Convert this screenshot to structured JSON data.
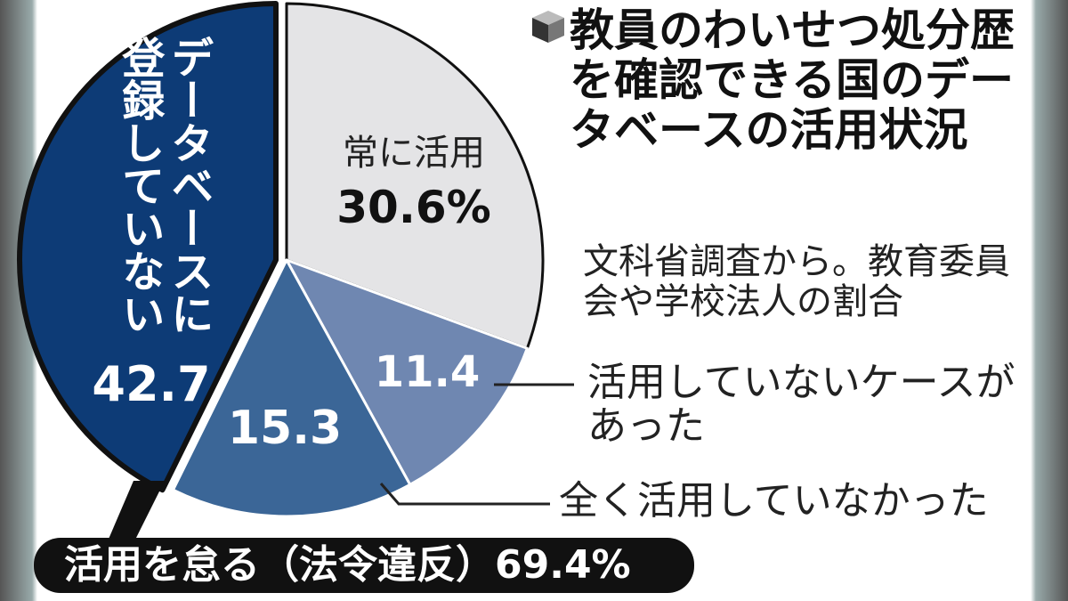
{
  "chart_data": {
    "type": "pie",
    "title": "教員のわいせつ処分歴を確認できる国のデータベースの活用状況",
    "note": "文科省調査から。教育委員会や学校法人の割合",
    "banner": "活用を怠る（法令違反）69.4%",
    "categories": [
      "常に活用",
      "活用していないケースがあった",
      "全く活用していなかった",
      "データベースに登録していない"
    ],
    "values": [
      30.6,
      11.4,
      15.3,
      42.7
    ],
    "value_labels": [
      "30.6%",
      "11.4",
      "15.3",
      "42.7"
    ],
    "colors": [
      "#e4e4e6",
      "#6f87b1",
      "#3b6697",
      "#0d3b76"
    ]
  }
}
